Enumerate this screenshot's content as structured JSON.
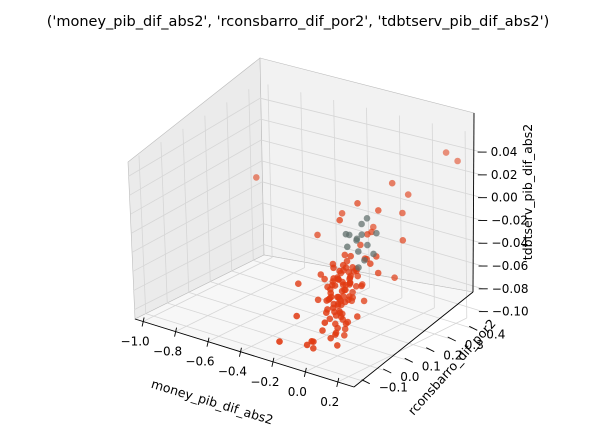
{
  "chart_data": {
    "type": "scatter",
    "projection": "3d",
    "title": "('money_pib_dif_abs2', 'rconsbarro_dif_por2', 'tdbtserv_pib_dif_abs2')",
    "xlabel": "money_pib_dif_abs2",
    "ylabel": "rconsbarro_dif_por2",
    "zlabel": "tdbtserv_pib_dif_abs2",
    "x_ticks": [
      "−1.0",
      "−0.8",
      "−0.6",
      "−0.4",
      "−0.2",
      "0.0",
      "0.2"
    ],
    "y_ticks": [
      "−0.1",
      "0.0",
      "0.1",
      "0.2",
      "0.3",
      "0.4"
    ],
    "z_ticks": [
      "−0.10",
      "−0.08",
      "−0.06",
      "−0.04",
      "−0.02",
      "0.00",
      "0.02",
      "0.04"
    ],
    "xlim": [
      -1.05,
      0.3
    ],
    "ylim": [
      -0.15,
      0.45
    ],
    "zlim": [
      -0.11,
      0.055
    ],
    "grid": true,
    "colors": {
      "main": "#e03a12",
      "highlight": "#5f6e6b",
      "pane_left": "#ebebeb",
      "pane_back": "#f2f2f2",
      "pane_floor": "#f7f7f7",
      "grid": "#d6d6d6"
    },
    "series": [
      {
        "color": "#e03a12",
        "points": [
          [
            -0.95,
            0.35,
            -0.02
          ],
          [
            -0.05,
            0.05,
            -0.045
          ],
          [
            -0.04,
            0.06,
            -0.048
          ],
          [
            -0.06,
            0.04,
            -0.05
          ],
          [
            -0.05,
            0.07,
            -0.052
          ],
          [
            -0.03,
            0.05,
            -0.055
          ],
          [
            -0.07,
            0.06,
            -0.045
          ],
          [
            -0.04,
            0.04,
            -0.06
          ],
          [
            -0.05,
            0.08,
            -0.058
          ],
          [
            -0.06,
            0.05,
            -0.062
          ],
          [
            -0.02,
            0.06,
            -0.05
          ],
          [
            -0.08,
            0.07,
            -0.048
          ],
          [
            -0.04,
            0.09,
            -0.042
          ],
          [
            -0.03,
            0.03,
            -0.065
          ],
          [
            -0.06,
            0.02,
            -0.055
          ],
          [
            -0.05,
            0.1,
            -0.05
          ],
          [
            -0.07,
            0.09,
            -0.06
          ],
          [
            -0.02,
            0.08,
            -0.045
          ],
          [
            -0.09,
            0.05,
            -0.052
          ],
          [
            -0.01,
            0.04,
            -0.058
          ],
          [
            -0.05,
            0.06,
            -0.07
          ],
          [
            -0.04,
            0.07,
            -0.068
          ],
          [
            -0.06,
            0.08,
            -0.04
          ],
          [
            -0.03,
            0.1,
            -0.038
          ],
          [
            -0.08,
            0.03,
            -0.062
          ],
          [
            -0.05,
            0.05,
            -0.075
          ],
          [
            -0.04,
            0.02,
            -0.072
          ],
          [
            -0.06,
            0.11,
            -0.055
          ],
          [
            -0.02,
            0.03,
            -0.06
          ],
          [
            -0.07,
            0.04,
            -0.068
          ],
          [
            -0.1,
            0.06,
            -0.05
          ],
          [
            -0.03,
            0.07,
            -0.035
          ],
          [
            -0.05,
            0.12,
            -0.045
          ],
          [
            -0.04,
            0.05,
            -0.08
          ],
          [
            -0.06,
            0.06,
            -0.078
          ],
          [
            -0.02,
            0.09,
            -0.065
          ],
          [
            -0.08,
            0.08,
            -0.07
          ],
          [
            -0.05,
            0.03,
            -0.085
          ],
          [
            -0.03,
            0.05,
            -0.082
          ],
          [
            -0.07,
            0.07,
            -0.04
          ],
          [
            -0.01,
            0.07,
            -0.05
          ],
          [
            -0.12,
            0.05,
            -0.055
          ],
          [
            -0.04,
            0.13,
            -0.05
          ],
          [
            -0.06,
            0.01,
            -0.06
          ],
          [
            -0.02,
            0.11,
            -0.042
          ],
          [
            -0.09,
            0.09,
            -0.045
          ],
          [
            -0.05,
            0.04,
            -0.09
          ],
          [
            -0.04,
            0.08,
            -0.088
          ],
          [
            -0.03,
            0.02,
            -0.075
          ],
          [
            -0.06,
            0.1,
            -0.07
          ],
          [
            -0.07,
            0.02,
            -0.08
          ],
          [
            -0.1,
            0.03,
            -0.065
          ],
          [
            -0.02,
            0.05,
            -0.03
          ],
          [
            -0.05,
            0.09,
            -0.032
          ],
          [
            -0.08,
            0.05,
            -0.035
          ],
          [
            -0.04,
            0.1,
            -0.028
          ],
          [
            0.0,
            0.06,
            -0.06
          ],
          [
            -0.06,
            0.04,
            -0.095
          ],
          [
            -0.03,
            0.06,
            -0.092
          ],
          [
            -0.05,
            0.07,
            -0.1
          ],
          [
            -0.13,
            0.07,
            -0.06
          ],
          [
            -0.11,
            0.04,
            -0.075
          ],
          [
            0.02,
            0.05,
            -0.045
          ],
          [
            -0.04,
            0.15,
            -0.06
          ],
          [
            -0.06,
            0.14,
            -0.045
          ],
          [
            -0.03,
            0.0,
            -0.055
          ],
          [
            -0.07,
            0.12,
            -0.05
          ],
          [
            -0.15,
            0.06,
            -0.05
          ],
          [
            -0.05,
            -0.01,
            -0.07
          ],
          [
            0.05,
            0.08,
            -0.05
          ],
          [
            -0.02,
            0.15,
            -0.035
          ],
          [
            -0.08,
            0.13,
            -0.075
          ],
          [
            -0.1,
            0.1,
            -0.085
          ],
          [
            -0.04,
            0.0,
            -0.095
          ],
          [
            -0.06,
            0.16,
            -0.025
          ],
          [
            0.01,
            0.12,
            -0.07
          ],
          [
            -0.05,
            0.18,
            -0.04
          ],
          [
            -0.18,
            0.05,
            -0.07
          ],
          [
            -0.2,
            0.08,
            -0.05
          ],
          [
            -0.09,
            0.0,
            -0.09
          ],
          [
            0.03,
            0.02,
            -0.08
          ],
          [
            -0.03,
            0.19,
            -0.015
          ],
          [
            -0.07,
            0.2,
            -0.02
          ],
          [
            0.05,
            0.15,
            -0.03
          ],
          [
            0.0,
            0.2,
            0.005
          ],
          [
            -0.02,
            0.28,
            0.02
          ],
          [
            0.05,
            0.3,
            0.01
          ],
          [
            0.08,
            0.25,
            0.0
          ],
          [
            -0.1,
            0.18,
            0.01
          ],
          [
            0.15,
            0.4,
            0.04
          ],
          [
            0.22,
            0.4,
            0.035
          ],
          [
            0.12,
            0.22,
            -0.02
          ],
          [
            0.08,
            0.1,
            -0.03
          ],
          [
            -0.25,
            0.22,
            -0.01
          ],
          [
            -0.35,
            0.18,
            -0.03
          ],
          [
            -0.3,
            0.05,
            -0.06
          ],
          [
            -0.22,
            -0.02,
            -0.08
          ],
          [
            -0.12,
            -0.05,
            -0.1
          ],
          [
            -0.15,
            0.0,
            -0.11
          ],
          [
            -0.25,
            -0.08,
            -0.1
          ],
          [
            -0.05,
            -0.08,
            -0.09
          ],
          [
            0.0,
            0.0,
            -0.1
          ],
          [
            0.03,
            -0.03,
            -0.085
          ],
          [
            -0.08,
            -0.05,
            -0.095
          ],
          [
            -0.18,
            0.14,
            -0.085
          ],
          [
            0.06,
            0.05,
            -0.075
          ],
          [
            0.1,
            0.12,
            -0.04
          ],
          [
            0.12,
            0.18,
            -0.05
          ],
          [
            -0.02,
            -0.04,
            -0.075
          ],
          [
            -0.1,
            0.25,
            -0.02
          ],
          [
            -0.13,
            0.12,
            0.0
          ],
          [
            -0.04,
            0.02,
            -0.04
          ],
          [
            -0.06,
            0.12,
            -0.065
          ],
          [
            -0.02,
            0.0,
            -0.065
          ],
          [
            -0.09,
            0.11,
            -0.03
          ],
          [
            -0.01,
            0.1,
            -0.055
          ],
          [
            -0.11,
            0.07,
            -0.035
          ]
        ]
      },
      {
        "color": "#5f6e6b",
        "points": [
          [
            -0.06,
            0.1,
            -0.02
          ],
          [
            -0.02,
            0.12,
            -0.025
          ],
          [
            -0.04,
            0.13,
            -0.015
          ],
          [
            0.01,
            0.14,
            -0.02
          ],
          [
            -0.08,
            0.11,
            -0.01
          ],
          [
            0.03,
            0.11,
            -0.03
          ],
          [
            -0.05,
            0.16,
            -0.005
          ],
          [
            -0.1,
            0.14,
            -0.015
          ],
          [
            0.04,
            0.16,
            -0.01
          ],
          [
            -0.03,
            0.17,
            0.0
          ],
          [
            0.02,
            0.09,
            -0.035
          ],
          [
            -0.07,
            0.15,
            -0.02
          ],
          [
            0.06,
            0.13,
            -0.025
          ],
          [
            -0.01,
            0.13,
            -0.01
          ]
        ]
      }
    ]
  }
}
